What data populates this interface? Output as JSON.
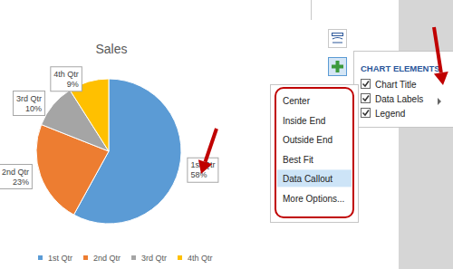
{
  "chart_data": {
    "type": "pie",
    "title": "Sales",
    "categories": [
      "1st Qtr",
      "2nd Qtr",
      "3rd Qtr",
      "4th Qtr"
    ],
    "values": [
      58,
      23,
      10,
      9
    ],
    "value_labels": [
      "58%",
      "23%",
      "10%",
      "9%"
    ],
    "colors": [
      "#5b9bd5",
      "#ed7d31",
      "#a5a5a5",
      "#ffc000"
    ],
    "data_labels": true,
    "legend": "bottom"
  },
  "chart_elements_panel": {
    "title": "CHART ELEMENTS",
    "items": [
      {
        "label": "Chart Title",
        "checked": true
      },
      {
        "label": "Data Labels",
        "checked": true
      },
      {
        "label": "Legend",
        "checked": true
      }
    ]
  },
  "data_labels_menu": {
    "items": [
      {
        "label": "Center",
        "highlighted": false
      },
      {
        "label": "Inside End",
        "highlighted": false
      },
      {
        "label": "Outside End",
        "highlighted": false
      },
      {
        "label": "Best Fit",
        "highlighted": false
      },
      {
        "label": "Data Callout",
        "highlighted": true
      },
      {
        "label": "More Options...",
        "highlighted": false
      }
    ]
  }
}
